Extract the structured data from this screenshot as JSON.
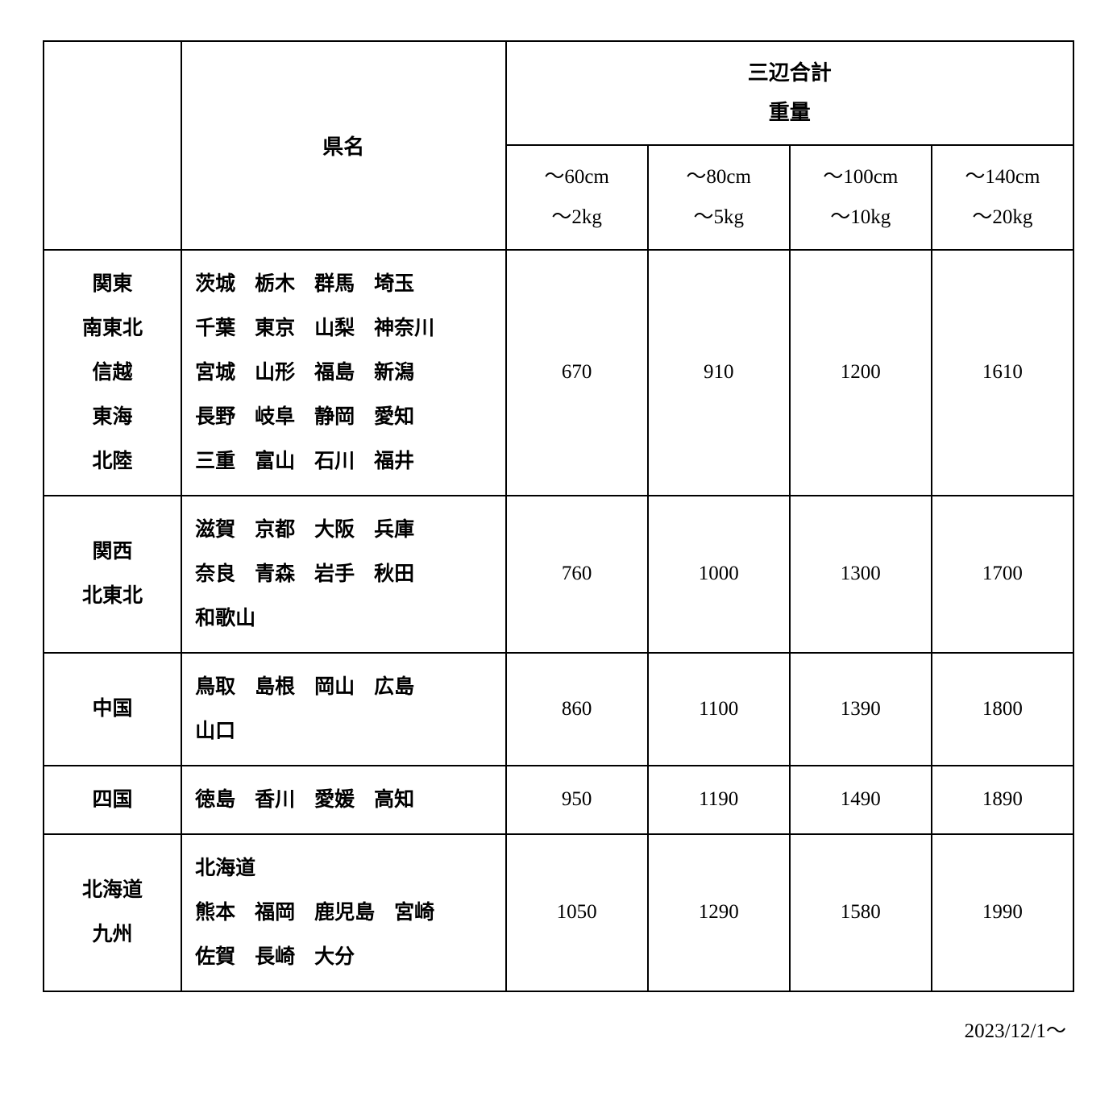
{
  "header": {
    "pref_label": "県名",
    "size_group_label": "三辺合計",
    "weight_group_label": "重量",
    "size_tiers": [
      {
        "size": "～60cm",
        "weight": "～2kg"
      },
      {
        "size": "～80cm",
        "weight": "～5kg"
      },
      {
        "size": "～100cm",
        "weight": "～10kg"
      },
      {
        "size": "～140cm",
        "weight": "～20kg"
      }
    ]
  },
  "rows": [
    {
      "regions": [
        "関東",
        "南東北",
        "信越",
        "東海",
        "北陸"
      ],
      "prefectures": [
        [
          "茨城",
          "栃木",
          "群馬",
          "埼玉"
        ],
        [
          "千葉",
          "東京",
          "山梨",
          "神奈川"
        ],
        [
          "宮城",
          "山形",
          "福島",
          "新潟"
        ],
        [
          "長野",
          "岐阜",
          "静岡",
          "愛知"
        ],
        [
          "三重",
          "富山",
          "石川",
          "福井"
        ]
      ],
      "prices": [
        670,
        910,
        1200,
        1610
      ]
    },
    {
      "regions": [
        "関西",
        "北東北"
      ],
      "prefectures": [
        [
          "滋賀",
          "京都",
          "大阪",
          "兵庫"
        ],
        [
          "奈良",
          "青森",
          "岩手",
          "秋田"
        ],
        [
          "和歌山"
        ]
      ],
      "prices": [
        760,
        1000,
        1300,
        1700
      ]
    },
    {
      "regions": [
        "中国"
      ],
      "prefectures": [
        [
          "鳥取",
          "島根",
          "岡山",
          "広島"
        ],
        [
          "山口"
        ]
      ],
      "prices": [
        860,
        1100,
        1390,
        1800
      ]
    },
    {
      "regions": [
        "四国"
      ],
      "prefectures": [
        [
          "徳島",
          "香川",
          "愛媛",
          "高知"
        ]
      ],
      "prices": [
        950,
        1190,
        1490,
        1890
      ]
    },
    {
      "regions": [
        "北海道",
        "九州"
      ],
      "prefectures": [
        [
          "北海道"
        ],
        [
          "熊本",
          "福岡",
          "鹿児島",
          "宮崎"
        ],
        [
          "佐賀",
          "長崎",
          "大分"
        ]
      ],
      "prices": [
        1050,
        1290,
        1580,
        1990
      ]
    }
  ],
  "date_note": "2023/12/1～"
}
